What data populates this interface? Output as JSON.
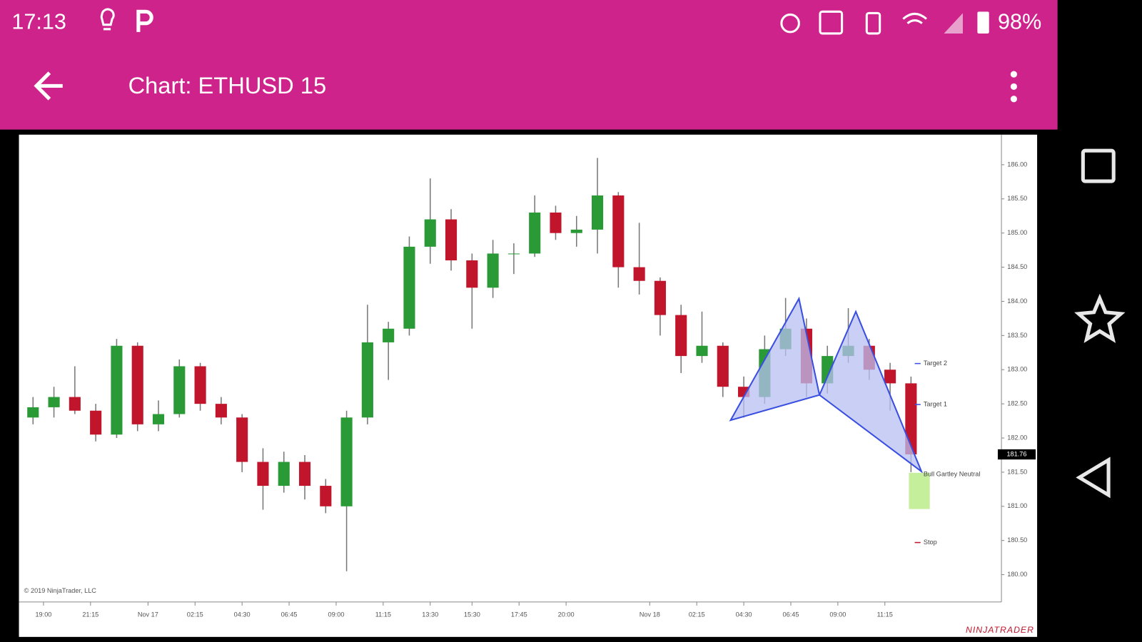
{
  "status_bar": {
    "time": "17:13",
    "battery": "98%"
  },
  "app_bar": {
    "title": "Chart: ETHUSD 15"
  },
  "chart_data": {
    "type": "candlestick",
    "open": [
      182.3,
      182.45,
      182.6,
      182.4,
      182.05,
      183.35,
      182.2,
      182.35,
      183.05,
      182.5,
      182.3,
      181.65,
      181.3,
      181.65,
      181.3,
      181.0,
      182.3,
      183.4,
      183.6,
      184.8,
      185.2,
      184.6,
      184.2,
      184.7,
      184.7,
      185.3,
      185.0,
      185.05,
      185.55,
      184.5,
      184.3,
      183.8,
      183.2,
      183.35,
      182.75,
      182.6,
      183.3,
      183.6,
      182.8,
      183.2,
      183.35,
      183.0,
      182.8
    ],
    "high": [
      182.6,
      182.75,
      183.05,
      182.5,
      183.45,
      183.4,
      182.55,
      183.15,
      183.1,
      182.6,
      182.35,
      181.85,
      181.8,
      181.75,
      181.4,
      182.4,
      183.95,
      183.7,
      184.95,
      185.8,
      185.35,
      184.7,
      184.9,
      184.85,
      185.55,
      185.4,
      185.25,
      186.1,
      185.6,
      185.15,
      184.35,
      183.95,
      183.85,
      183.4,
      182.9,
      183.5,
      184.05,
      183.75,
      183.35,
      183.9,
      183.45,
      183.1,
      182.9
    ],
    "low": [
      182.2,
      182.3,
      182.35,
      181.95,
      182.0,
      182.1,
      182.1,
      182.3,
      182.4,
      182.2,
      181.5,
      180.95,
      181.2,
      181.1,
      180.9,
      180.05,
      182.2,
      182.85,
      183.5,
      184.55,
      184.45,
      183.6,
      184.05,
      184.4,
      184.65,
      184.9,
      184.8,
      184.7,
      184.2,
      184.1,
      183.5,
      182.95,
      183.1,
      182.6,
      182.3,
      182.5,
      183.2,
      182.6,
      182.65,
      183.1,
      182.85,
      182.4,
      181.5
    ],
    "close": [
      182.45,
      182.6,
      182.4,
      182.05,
      183.35,
      182.2,
      182.35,
      183.05,
      182.5,
      182.3,
      181.65,
      181.3,
      181.65,
      181.3,
      181.0,
      182.3,
      183.4,
      183.6,
      184.8,
      185.2,
      184.6,
      184.2,
      184.7,
      184.7,
      185.3,
      185.0,
      185.05,
      185.55,
      184.5,
      184.3,
      183.8,
      183.2,
      183.35,
      182.75,
      182.6,
      183.3,
      183.6,
      182.8,
      183.2,
      183.35,
      183.0,
      182.8,
      181.76
    ],
    "up_color": "#2a9a36",
    "down_color": "#c0152a",
    "xlim": [
      0,
      47
    ],
    "xticks": [
      {
        "value": 1,
        "label": "19:00"
      },
      {
        "value": 3.25,
        "label": "21:15"
      },
      {
        "value": 6,
        "label": "Nov 17"
      },
      {
        "value": 8.25,
        "label": "02:15"
      },
      {
        "value": 10.5,
        "label": "04:30"
      },
      {
        "value": 12.75,
        "label": "06:45"
      },
      {
        "value": 15,
        "label": "09:00"
      },
      {
        "value": 17.25,
        "label": "11:15"
      },
      {
        "value": 19.5,
        "label": "13:30"
      },
      {
        "value": 21.5,
        "label": "15:30"
      },
      {
        "value": 23.75,
        "label": "17:45"
      },
      {
        "value": 26,
        "label": "20:00"
      },
      {
        "value": 30,
        "label": "Nov 18"
      },
      {
        "value": 32.25,
        "label": "02:15"
      },
      {
        "value": 34.5,
        "label": "04:30"
      },
      {
        "value": 36.75,
        "label": "06:45"
      },
      {
        "value": 39,
        "label": "09:00"
      },
      {
        "value": 41.25,
        "label": "11:15"
      }
    ],
    "ylim": [
      179.6,
      186.44
    ],
    "yticks": [
      {
        "value": 180,
        "label": "180.00"
      },
      {
        "value": 180.5,
        "label": "180.50"
      },
      {
        "value": 181,
        "label": "181.00"
      },
      {
        "value": 181.5,
        "label": "181.50"
      },
      {
        "value": 182,
        "label": "182.00"
      },
      {
        "value": 182.5,
        "label": "182.50"
      },
      {
        "value": 183,
        "label": "183.00"
      },
      {
        "value": 183.5,
        "label": "183.50"
      },
      {
        "value": 184,
        "label": "184.00"
      },
      {
        "value": 184.5,
        "label": "184.50"
      },
      {
        "value": 185,
        "label": "185.00"
      },
      {
        "value": 185.5,
        "label": "185.50"
      },
      {
        "value": 186,
        "label": "186.00"
      }
    ],
    "current_price": 181.76,
    "pattern": {
      "x": [
        33.87,
        37.14,
        38.12,
        39.86,
        43.0
      ],
      "y": [
        182.26,
        184.04,
        182.63,
        183.85,
        181.51
      ],
      "color": "#3a4fe0",
      "fill": "#b8bff2"
    },
    "pattern_label": "Bull Gartley Neutral",
    "entry_zone": {
      "range": [
        180.96,
        181.49
      ],
      "color": "#c6ef9c"
    },
    "annotations": [
      {
        "text": "Target 2",
        "price": 183.09,
        "color": "#3a4fe0"
      },
      {
        "text": "Target 1",
        "price": 182.49,
        "color": "#3a4fe0"
      },
      {
        "text": "Stop",
        "price": 180.47,
        "color": "#c0152a"
      }
    ],
    "copyright": "© 2019 NinjaTrader, LLC",
    "logo": "NINJATRADER"
  }
}
